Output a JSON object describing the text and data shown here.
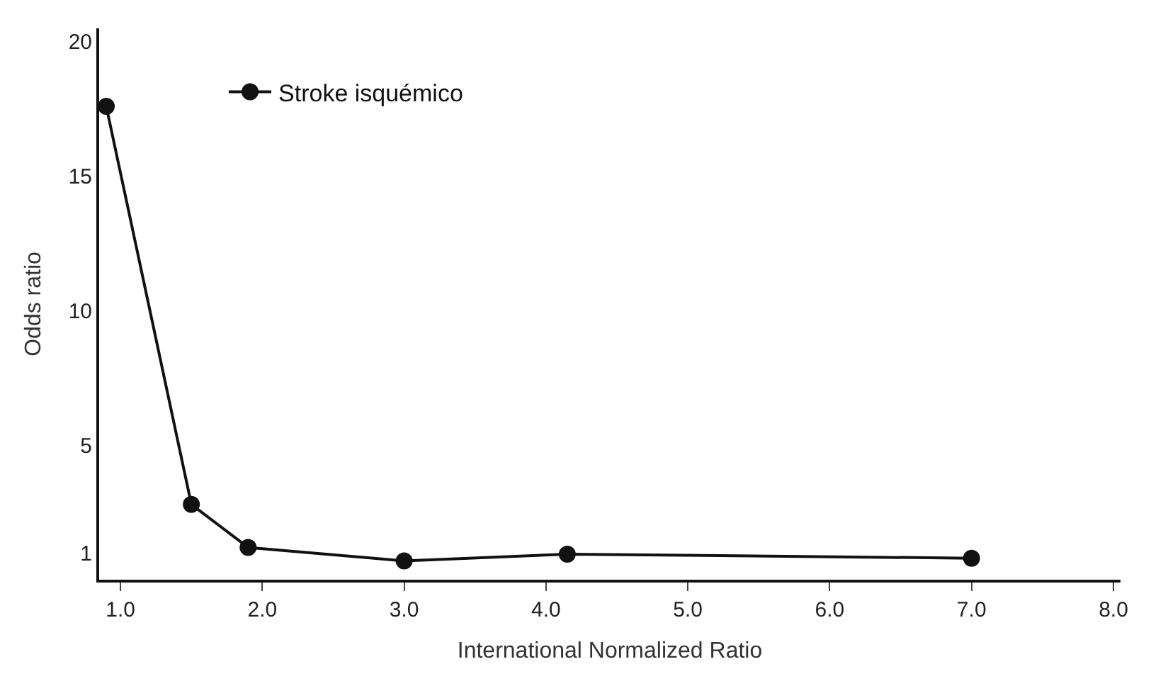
{
  "chart_data": {
    "type": "line",
    "xlabel": "International Normalized Ratio",
    "ylabel": "Odds ratio",
    "x": [
      0.9,
      1.5,
      1.9,
      3.0,
      4.15,
      7.0
    ],
    "series": [
      {
        "name": "Stroke isquémico",
        "color": "#111111",
        "values": [
          17.6,
          2.8,
          1.2,
          0.7,
          0.95,
          0.8
        ]
      }
    ],
    "xlim": [
      0.85,
      8.05
    ],
    "xticks": [
      {
        "value": 1,
        "label": "1.0"
      },
      {
        "value": 2,
        "label": "2.0"
      },
      {
        "value": 3,
        "label": "3.0"
      },
      {
        "value": 4,
        "label": "4.0"
      },
      {
        "value": 5,
        "label": "5.0"
      },
      {
        "value": 6,
        "label": "6.0"
      },
      {
        "value": 7,
        "label": "7.0"
      },
      {
        "value": 8,
        "label": "8.0"
      }
    ],
    "ylim": [
      0,
      20.5
    ],
    "yticks": [
      1,
      5,
      10,
      15,
      20
    ],
    "legend": "top left",
    "marker": "circle",
    "line_style": "solid"
  }
}
